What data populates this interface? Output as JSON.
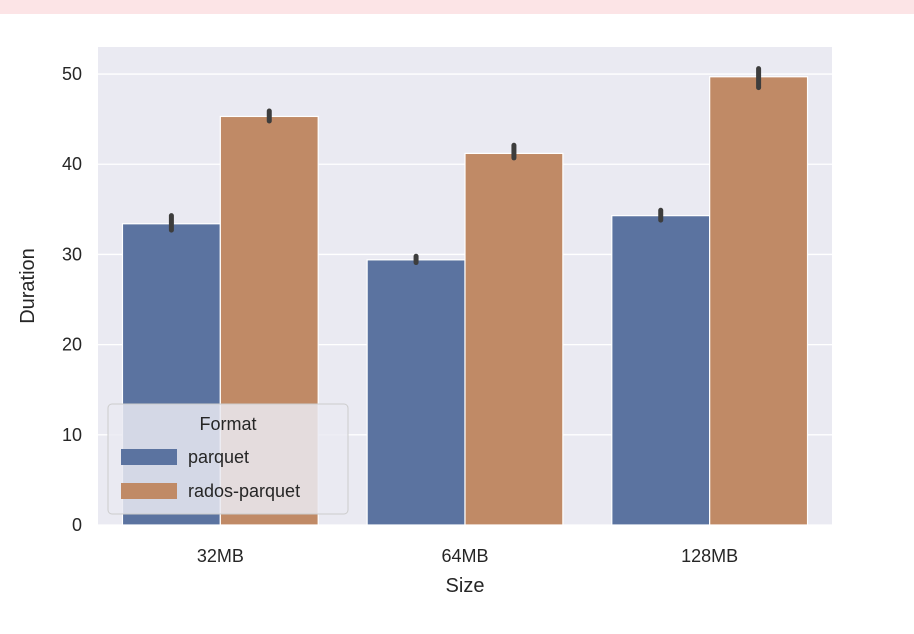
{
  "chart_data": {
    "type": "bar",
    "categories": [
      "32MB",
      "64MB",
      "128MB"
    ],
    "series": [
      {
        "name": "parquet",
        "color": "#5b73a0",
        "values": [
          33.4,
          29.4,
          34.3
        ],
        "error_low": [
          32.7,
          29.1,
          33.8
        ],
        "error_high": [
          34.3,
          29.8,
          34.9
        ]
      },
      {
        "name": "rados-parquet",
        "color": "#c08a66",
        "values": [
          45.3,
          41.2,
          49.7
        ],
        "error_low": [
          44.8,
          40.7,
          48.5
        ],
        "error_high": [
          45.9,
          42.1,
          50.6
        ]
      }
    ],
    "xlabel": "Size",
    "ylabel": "Duration",
    "ylim": [
      0,
      53
    ],
    "yticks": [
      0,
      10,
      20,
      30,
      40,
      50
    ],
    "grid": true,
    "legend": {
      "title": "Format",
      "placement": "lower-left"
    }
  }
}
